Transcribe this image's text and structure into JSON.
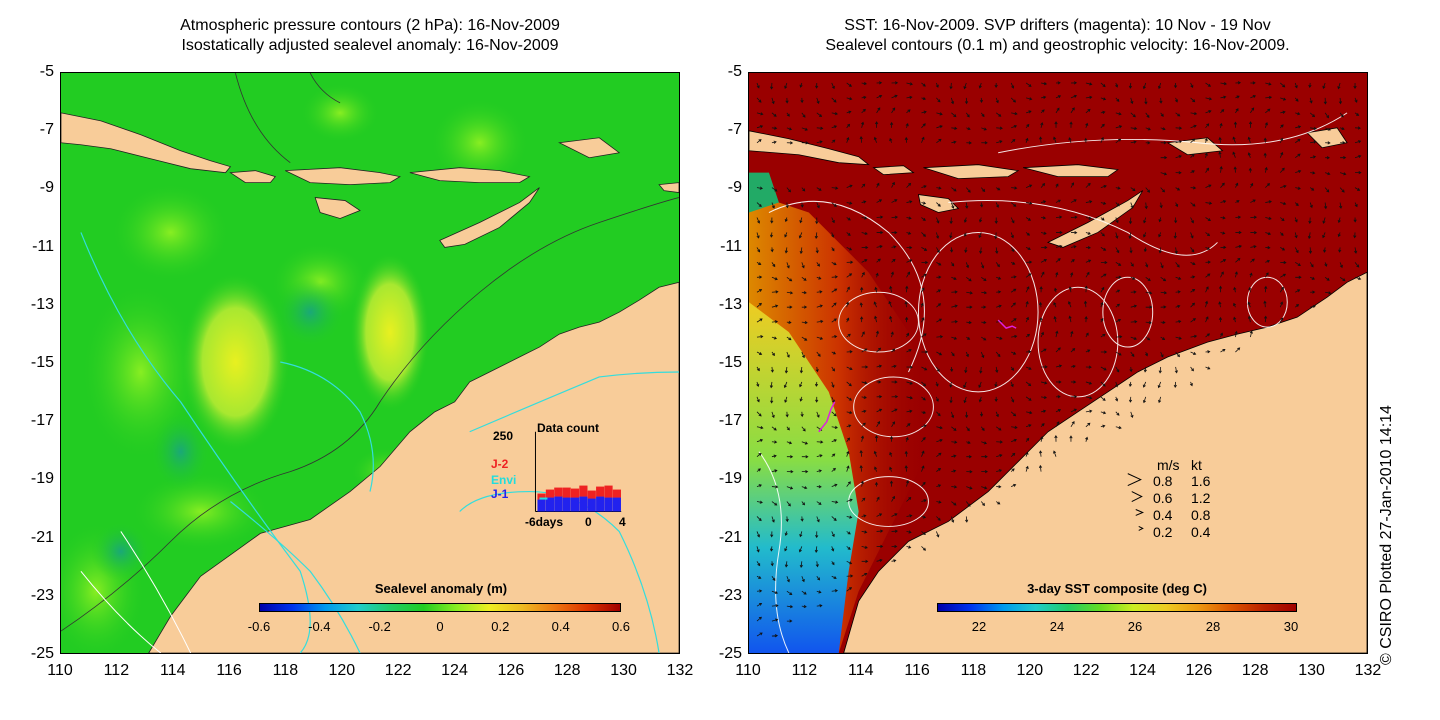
{
  "left_panel": {
    "title_line1": "Atmospheric pressure contours (2 hPa): 16-Nov-2009",
    "title_line2": "Isostatically adjusted sealevel anomaly: 16-Nov-2009",
    "colorbar": {
      "title": "Sealevel anomaly (m)",
      "ticks": [
        "-0.6",
        "-0.4",
        "-0.2",
        "0",
        "0.2",
        "0.4",
        "0.6"
      ]
    },
    "inset": {
      "title": "Data count",
      "y_max": "250",
      "x_labels": [
        "-6days",
        "0",
        "4"
      ],
      "legend": [
        {
          "label": "J-2",
          "color": "#ee2222"
        },
        {
          "label": "Envi",
          "color": "#22dddd"
        },
        {
          "label": "J-1",
          "color": "#2222ee"
        }
      ]
    }
  },
  "right_panel": {
    "title_line1": "SST: 16-Nov-2009. SVP drifters (magenta): 10 Nov - 19 Nov",
    "title_line2": "Sealevel contours (0.1 m) and geostrophic velocity: 16-Nov-2009.",
    "colorbar": {
      "title": "3-day SST composite (deg C)",
      "ticks": [
        "22",
        "24",
        "26",
        "28",
        "30"
      ]
    },
    "speed_legend": {
      "header_ms": "m/s",
      "header_kt": "kt",
      "rows": [
        {
          "ms": "0.8",
          "kt": "1.6"
        },
        {
          "ms": "0.6",
          "kt": "1.2"
        },
        {
          "ms": "0.4",
          "kt": "0.8"
        },
        {
          "ms": "0.2",
          "kt": "0.4"
        }
      ]
    }
  },
  "axes": {
    "y_ticks": [
      "-5",
      "-7",
      "-9",
      "-11",
      "-13",
      "-15",
      "-17",
      "-19",
      "-21",
      "-23",
      "-25"
    ],
    "x_ticks": [
      "110",
      "112",
      "114",
      "116",
      "118",
      "120",
      "122",
      "124",
      "126",
      "128",
      "130",
      "132"
    ]
  },
  "credit": "© CSIRO Plotted 27-Jan-2010 14:14",
  "colors": {
    "land": "#f8cc99",
    "left_ocean": "#22cc22",
    "right_ocean_warm": "#9a0000",
    "contour_light": "#ffffff",
    "contour_cyan": "#33dddd",
    "drifter": "#dd22dd"
  }
}
